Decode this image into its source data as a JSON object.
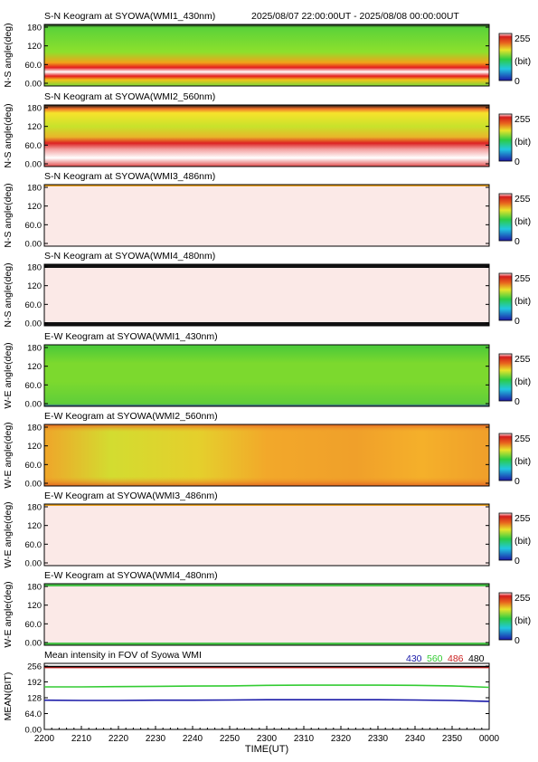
{
  "header": {
    "range_text": "2025/08/07 22:00:00UT - 2025/08/08 00:00:00UT"
  },
  "colorbar": {
    "max_label": "255",
    "unit_label": "(bit)",
    "min_label": "0"
  },
  "keo_ticks": [
    "180",
    "120",
    "60.0",
    "0.00"
  ],
  "panels": [
    {
      "title": "S-N Keogram at SYOWA(WMI1_430nm)",
      "ylabel": "N-S angle(deg)",
      "style": "wmi1"
    },
    {
      "title": "S-N Keogram at SYOWA(WMI2_560nm)",
      "ylabel": "N-S angle(deg)",
      "style": "wmi2sn"
    },
    {
      "title": "S-N Keogram at SYOWA(WMI3_486nm)",
      "ylabel": "N-S angle(deg)",
      "style": "pale"
    },
    {
      "title": "S-N Keogram at SYOWA(WMI4_480nm)",
      "ylabel": "N-S angle(deg)",
      "style": "pale_dark"
    },
    {
      "title": "E-W Keogram at SYOWA(WMI1_430nm)",
      "ylabel": "W-E angle(deg)",
      "style": "wmi1ew"
    },
    {
      "title": "E-W Keogram at SYOWA(WMI2_560nm)",
      "ylabel": "W-E angle(deg)",
      "style": "wmi2ew"
    },
    {
      "title": "E-W Keogram at SYOWA(WMI3_486nm)",
      "ylabel": "W-E angle(deg)",
      "style": "pale"
    },
    {
      "title": "E-W Keogram at SYOWA(WMI4_480nm)",
      "ylabel": "W-E angle(deg)",
      "style": "pale_green"
    }
  ],
  "mean_panel": {
    "title": "Mean intensity in FOV of Syowa WMI",
    "ylabel": "MEAN(BIT)",
    "yticks": [
      "256",
      "192",
      "128",
      "64.0",
      "0.00"
    ],
    "legend": [
      {
        "label": "430",
        "color": "#1a1aa8"
      },
      {
        "label": "560",
        "color": "#33cc33"
      },
      {
        "label": "486",
        "color": "#cc2222"
      },
      {
        "label": "480",
        "color": "#000000"
      }
    ]
  },
  "x_axis": {
    "ticks": [
      "2200",
      "2210",
      "2220",
      "2230",
      "2240",
      "2250",
      "2300",
      "2310",
      "2320",
      "2330",
      "2340",
      "2350",
      "0000"
    ],
    "label": "TIME(UT)"
  },
  "chart_data": {
    "type": "line",
    "title": "Mean intensity in FOV of Syowa WMI",
    "ylabel": "MEAN(BIT)",
    "xlabel": "TIME(UT)",
    "ylim": [
      0,
      256
    ],
    "x": [
      "2200",
      "2210",
      "2220",
      "2230",
      "2240",
      "2250",
      "2300",
      "2310",
      "2320",
      "2330",
      "2340",
      "2350",
      "0000"
    ],
    "series": [
      {
        "name": "430",
        "color": "#1a1aa8",
        "values": [
          118,
          117,
          117,
          118,
          118,
          119,
          120,
          120,
          120,
          120,
          119,
          117,
          113
        ]
      },
      {
        "name": "560",
        "color": "#33cc33",
        "values": [
          172,
          172,
          173,
          174,
          175,
          176,
          178,
          179,
          179,
          179,
          178,
          176,
          170
        ]
      },
      {
        "name": "486",
        "color": "#cc2222",
        "values": [
          250,
          250,
          250,
          250,
          250,
          250,
          250,
          250,
          250,
          250,
          250,
          250,
          250
        ]
      },
      {
        "name": "480",
        "color": "#000000",
        "values": [
          254,
          254,
          254,
          254,
          254,
          254,
          254,
          254,
          254,
          254,
          254,
          254,
          254
        ]
      }
    ]
  }
}
